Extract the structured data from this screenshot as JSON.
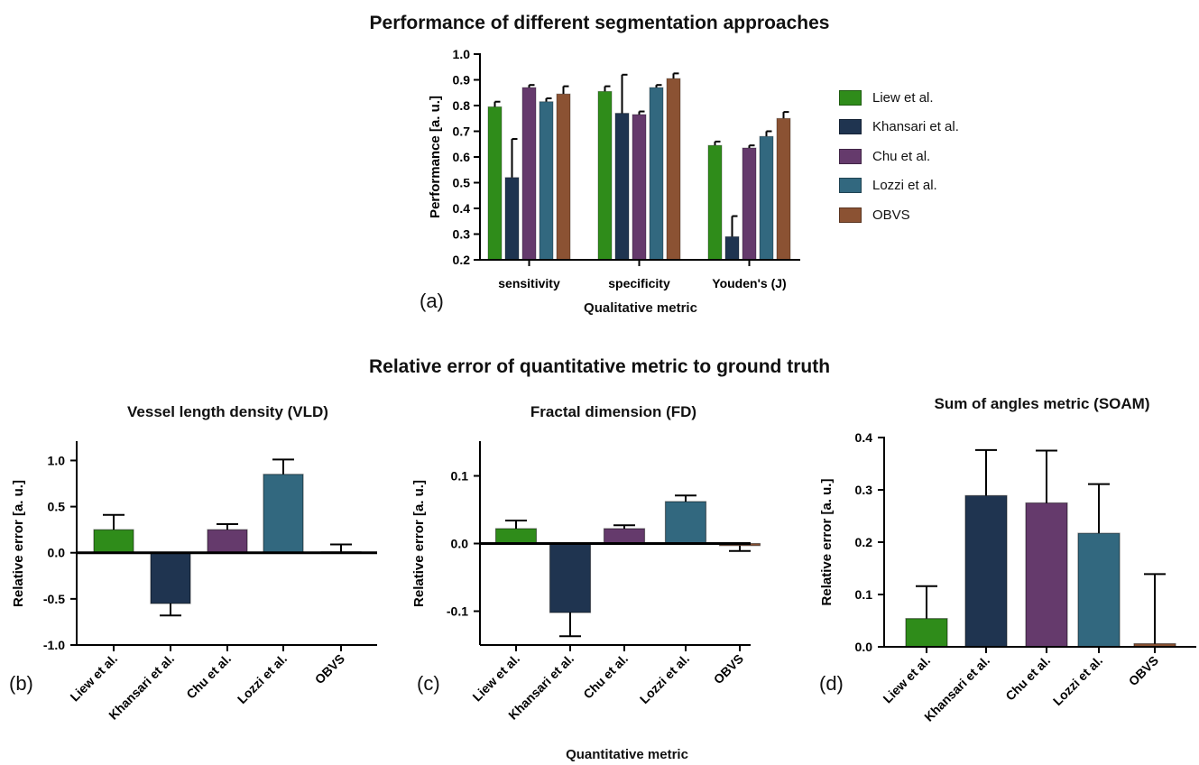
{
  "figure": {
    "top_title": "Performance of different segmentation approaches",
    "bottom_title": "Relative error of quantitative metric to ground truth",
    "bottom_xlabel": "Quantitative metric",
    "panel_letters": [
      "(a)",
      "(b)",
      "(c)",
      "(d)"
    ]
  },
  "colors": {
    "Liew et al.": "#2f8c1a",
    "Khansari et al.": "#1f3450",
    "Chu et al.": "#653a6c",
    "Lozzi et al.": "#32687f",
    "OBVS": "#8b5233"
  },
  "legend": [
    "Liew et al.",
    "Khansari et al.",
    "Chu et al.",
    "Lozzi et al.",
    "OBVS"
  ],
  "chart_data": [
    {
      "id": "a",
      "type": "bar",
      "title": "",
      "xlabel": "Qualitative metric",
      "ylabel": "Performance [a. u.]",
      "categories": [
        "sensitivity",
        "specificity",
        "Youden's (J)"
      ],
      "ylim": [
        0.2,
        1.0
      ],
      "yticks": [
        0.2,
        0.3,
        0.4,
        0.5,
        0.6,
        0.7,
        0.8,
        0.9,
        1.0
      ],
      "ytick_labels": [
        "0.2",
        "0.3",
        "0.4",
        "0.5",
        "0.6",
        "0.7",
        "0.8",
        "0.9",
        "1.0"
      ],
      "series": [
        {
          "name": "Liew et al.",
          "values": [
            0.795,
            0.855,
            0.645
          ],
          "errors": [
            0.02,
            0.02,
            0.015
          ]
        },
        {
          "name": "Khansari et al.",
          "values": [
            0.52,
            0.77,
            0.29
          ],
          "errors": [
            0.15,
            0.15,
            0.08
          ]
        },
        {
          "name": "Chu et al.",
          "values": [
            0.87,
            0.765,
            0.635
          ],
          "errors": [
            0.01,
            0.012,
            0.01
          ]
        },
        {
          "name": "Lozzi et al.",
          "values": [
            0.815,
            0.87,
            0.68
          ],
          "errors": [
            0.013,
            0.01,
            0.02
          ]
        },
        {
          "name": "OBVS",
          "values": [
            0.845,
            0.905,
            0.75
          ],
          "errors": [
            0.03,
            0.02,
            0.025
          ]
        }
      ]
    },
    {
      "id": "b",
      "type": "bar",
      "title": "Vessel length density (VLD)",
      "ylabel": "Relative error [a. u.]",
      "categories": [
        "Liew et al.",
        "Khansari et al.",
        "Chu et al.",
        "Lozzi et al.",
        "OBVS"
      ],
      "ylim": [
        -1.0,
        1.2
      ],
      "yticks": [
        -1.0,
        -0.5,
        0.0,
        0.5,
        1.0
      ],
      "ytick_labels": [
        "-1.0",
        "-0.5",
        "0.0",
        "0.5",
        "1.0"
      ],
      "values": [
        0.25,
        -0.55,
        0.25,
        0.85,
        0.01
      ],
      "errors": [
        0.16,
        0.13,
        0.06,
        0.16,
        0.08
      ]
    },
    {
      "id": "c",
      "type": "bar",
      "title": "Fractal dimension (FD)",
      "ylabel": "Relative error [a. u.]",
      "categories": [
        "Liew et al.",
        "Khansari et al.",
        "Chu et al.",
        "Lozzi et al.",
        "OBVS"
      ],
      "ylim": [
        -0.15,
        0.15
      ],
      "yticks": [
        -0.1,
        0.0,
        0.1
      ],
      "ytick_labels": [
        "-0.1",
        "0.0",
        "0.1"
      ],
      "values": [
        0.022,
        -0.102,
        0.022,
        0.062,
        -0.003
      ],
      "errors": [
        0.012,
        0.035,
        0.005,
        0.009,
        0.008
      ]
    },
    {
      "id": "d",
      "type": "bar",
      "title": "Sum of angles metric (SOAM)",
      "ylabel": "Relative error [a. u.]",
      "categories": [
        "Liew et al.",
        "Khansari et al.",
        "Chu et al.",
        "Lozzi et al.",
        "OBVS"
      ],
      "ylim": [
        0.0,
        0.4
      ],
      "yticks": [
        0.0,
        0.1,
        0.2,
        0.3,
        0.4
      ],
      "ytick_labels": [
        "0.0",
        "0.1",
        "0.2",
        "0.3",
        "0.4"
      ],
      "values": [
        0.054,
        0.289,
        0.275,
        0.217,
        0.006
      ],
      "errors": [
        0.062,
        0.087,
        0.1,
        0.094,
        0.133
      ]
    }
  ]
}
